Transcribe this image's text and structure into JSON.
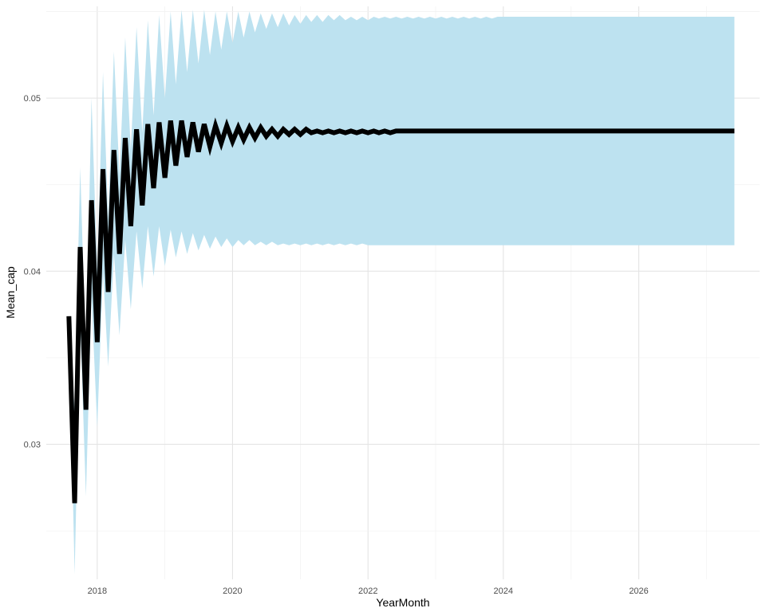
{
  "chart_data": {
    "type": "line",
    "title": "",
    "xlabel": "YearMonth",
    "ylabel": "Mean_cap",
    "x_axis_type": "date",
    "xlim": [
      "2017-04-01",
      "2027-10-15"
    ],
    "ylim": [
      0.0222,
      0.0553
    ],
    "x_ticks": [
      "2018",
      "2020",
      "2022",
      "2024",
      "2026"
    ],
    "y_ticks": [
      "0.03",
      "0.04",
      "0.05"
    ],
    "grid": true,
    "legend": "none",
    "colors": {
      "line": "#000000",
      "band": "#bce1f0",
      "grid_major": "#e4e4e4",
      "grid_minor": "#f1f1f1",
      "tick_text": "#4d4d4d"
    },
    "series": [
      {
        "values_from": "line",
        "x": [
          "2017-08-01",
          "2017-09-01",
          "2017-10-01",
          "2017-11-01",
          "2017-12-01",
          "2018-01-01",
          "2018-02-01",
          "2018-03-01",
          "2018-04-01",
          "2018-05-01",
          "2018-06-01",
          "2018-07-01",
          "2018-08-01",
          "2018-09-01",
          "2018-10-01",
          "2018-11-01",
          "2018-12-01",
          "2019-01-01",
          "2019-02-01",
          "2019-03-01",
          "2019-04-01",
          "2019-05-01",
          "2019-06-01",
          "2019-07-01",
          "2019-08-01",
          "2019-09-01",
          "2019-10-01",
          "2019-11-01",
          "2019-12-01",
          "2020-01-01",
          "2020-02-01",
          "2020-03-01",
          "2020-04-01",
          "2020-05-01",
          "2020-06-01",
          "2020-07-01",
          "2020-08-01",
          "2020-09-01",
          "2020-10-01",
          "2020-11-01",
          "2020-12-01",
          "2021-01-01",
          "2021-02-01",
          "2021-03-01",
          "2021-04-01",
          "2021-05-01",
          "2021-06-01",
          "2021-07-01",
          "2021-08-01",
          "2021-09-01",
          "2021-10-01",
          "2021-11-01",
          "2021-12-01",
          "2022-01-01",
          "2022-02-01",
          "2022-03-01",
          "2022-04-01",
          "2022-05-01",
          "2022-06-01",
          "2022-07-01",
          "2022-08-01",
          "2022-09-01",
          "2022-10-01",
          "2022-11-01",
          "2022-12-01",
          "2023-01-01",
          "2023-02-01",
          "2023-03-01",
          "2023-04-01",
          "2023-05-01",
          "2023-06-01",
          "2023-07-01",
          "2023-08-01",
          "2023-09-01",
          "2023-10-01",
          "2023-11-01",
          "2023-12-01",
          "2024-01-01",
          "2024-02-01",
          "2024-03-01",
          "2024-04-01",
          "2024-05-01",
          "2024-06-01",
          "2024-07-01",
          "2024-08-01",
          "2024-09-01",
          "2024-10-01",
          "2024-11-01",
          "2024-12-01",
          "2025-01-01",
          "2025-02-01",
          "2025-03-01",
          "2025-04-01",
          "2025-05-01",
          "2025-06-01",
          "2025-07-01",
          "2025-08-01",
          "2025-09-01",
          "2025-10-01",
          "2025-11-01",
          "2025-12-01",
          "2026-01-01",
          "2026-02-01",
          "2026-03-01",
          "2026-04-01",
          "2026-05-01",
          "2026-06-01",
          "2026-07-01",
          "2026-08-01",
          "2026-09-01",
          "2026-10-01",
          "2026-11-01",
          "2026-12-01",
          "2027-01-01",
          "2027-02-01",
          "2027-03-01",
          "2027-04-01",
          "2027-05-01",
          "2027-06-01"
        ],
        "line": [
          0.0374,
          0.0266,
          0.0414,
          0.032,
          0.0441,
          0.0359,
          0.0459,
          0.0388,
          0.047,
          0.041,
          0.0477,
          0.0426,
          0.0482,
          0.0438,
          0.0485,
          0.0448,
          0.0486,
          0.0454,
          0.0487,
          0.0461,
          0.0487,
          0.0466,
          0.0486,
          0.0469,
          0.0485,
          0.0472,
          0.0484,
          0.0474,
          0.0484,
          0.0475,
          0.0483,
          0.0476,
          0.0483,
          0.0477,
          0.0483,
          0.0478,
          0.0482,
          0.0478,
          0.0482,
          0.0479,
          0.0482,
          0.0479,
          0.0482,
          0.048,
          0.0481,
          0.048,
          0.0481,
          0.048,
          0.0481,
          0.048,
          0.0481,
          0.048,
          0.0481,
          0.048,
          0.0481,
          0.048,
          0.0481,
          0.048,
          0.0481,
          0.0481,
          0.0481,
          0.0481,
          0.0481,
          0.0481,
          0.0481,
          0.0481,
          0.0481,
          0.0481,
          0.0481,
          0.0481,
          0.0481,
          0.0481,
          0.0481,
          0.0481,
          0.0481,
          0.0481,
          0.0481,
          0.0481,
          0.0481,
          0.0481,
          0.0481,
          0.0481,
          0.0481,
          0.0481,
          0.0481,
          0.0481,
          0.0481,
          0.0481,
          0.0481,
          0.0481,
          0.0481,
          0.0481,
          0.0481,
          0.0481,
          0.0481,
          0.0481,
          0.0481,
          0.0481,
          0.0481,
          0.0481,
          0.0481,
          0.0481,
          0.0481,
          0.0481,
          0.0481,
          0.0481,
          0.0481,
          0.0481,
          0.0481,
          0.0481,
          0.0481,
          0.0481,
          0.0481,
          0.0481,
          0.0481,
          0.0481,
          0.0481,
          0.0481,
          0.0481
        ],
        "upper": [
          0.0374,
          0.032,
          0.046,
          0.035,
          0.05,
          0.04,
          0.0515,
          0.043,
          0.0527,
          0.0455,
          0.0535,
          0.047,
          0.0541,
          0.048,
          0.0545,
          0.049,
          0.0548,
          0.05,
          0.055,
          0.0508,
          0.0551,
          0.0515,
          0.0551,
          0.052,
          0.0551,
          0.0525,
          0.055,
          0.0528,
          0.055,
          0.0532,
          0.055,
          0.0535,
          0.055,
          0.0538,
          0.0549,
          0.054,
          0.0549,
          0.0541,
          0.0549,
          0.0542,
          0.0548,
          0.0543,
          0.0548,
          0.0544,
          0.0548,
          0.0544,
          0.0548,
          0.0545,
          0.0548,
          0.0545,
          0.0547,
          0.0545,
          0.0547,
          0.0545,
          0.0547,
          0.0546,
          0.0547,
          0.0546,
          0.0547,
          0.0546,
          0.0547,
          0.0546,
          0.0547,
          0.0546,
          0.0547,
          0.0546,
          0.0547,
          0.0546,
          0.0547,
          0.0546,
          0.0547,
          0.0546,
          0.0547,
          0.0546,
          0.0547,
          0.0546,
          0.0547,
          0.0547,
          0.0547,
          0.0547,
          0.0547,
          0.0547,
          0.0547,
          0.0547,
          0.0547,
          0.0547,
          0.0547,
          0.0547,
          0.0547,
          0.0547,
          0.0547,
          0.0547,
          0.0547,
          0.0547,
          0.0547,
          0.0547,
          0.0547,
          0.0547,
          0.0547,
          0.0547,
          0.0547,
          0.0547,
          0.0547,
          0.0547,
          0.0547,
          0.0547,
          0.0547,
          0.0547,
          0.0547,
          0.0547,
          0.0547,
          0.0547,
          0.0547,
          0.0547,
          0.0547,
          0.0547,
          0.0547,
          0.0547,
          0.0547
        ],
        "lower": [
          0.0374,
          0.0225,
          0.037,
          0.027,
          0.0385,
          0.031,
          0.04,
          0.0345,
          0.041,
          0.0363,
          0.0418,
          0.0378,
          0.0423,
          0.039,
          0.0426,
          0.0397,
          0.0426,
          0.0403,
          0.0424,
          0.0408,
          0.0423,
          0.041,
          0.0422,
          0.0412,
          0.0421,
          0.0413,
          0.042,
          0.0414,
          0.0419,
          0.0414,
          0.0418,
          0.0415,
          0.0418,
          0.0415,
          0.0417,
          0.0415,
          0.0417,
          0.0415,
          0.0416,
          0.0415,
          0.0416,
          0.0415,
          0.0416,
          0.0415,
          0.0416,
          0.0415,
          0.0416,
          0.0415,
          0.0416,
          0.0415,
          0.0416,
          0.0415,
          0.0416,
          0.0415,
          0.0415,
          0.0415,
          0.0415,
          0.0415,
          0.0415,
          0.0415,
          0.0415,
          0.0415,
          0.0415,
          0.0415,
          0.0415,
          0.0415,
          0.0415,
          0.0415,
          0.0415,
          0.0415,
          0.0415,
          0.0415,
          0.0415,
          0.0415,
          0.0415,
          0.0415,
          0.0415,
          0.0415,
          0.0415,
          0.0415,
          0.0415,
          0.0415,
          0.0415,
          0.0415,
          0.0415,
          0.0415,
          0.0415,
          0.0415,
          0.0415,
          0.0415,
          0.0415,
          0.0415,
          0.0415,
          0.0415,
          0.0415,
          0.0415,
          0.0415,
          0.0415,
          0.0415,
          0.0415,
          0.0415,
          0.0415,
          0.0415,
          0.0415,
          0.0415,
          0.0415,
          0.0415,
          0.0415,
          0.0415,
          0.0415,
          0.0415,
          0.0415,
          0.0415,
          0.0415,
          0.0415,
          0.0415,
          0.0415,
          0.0415,
          0.0415
        ]
      }
    ]
  }
}
